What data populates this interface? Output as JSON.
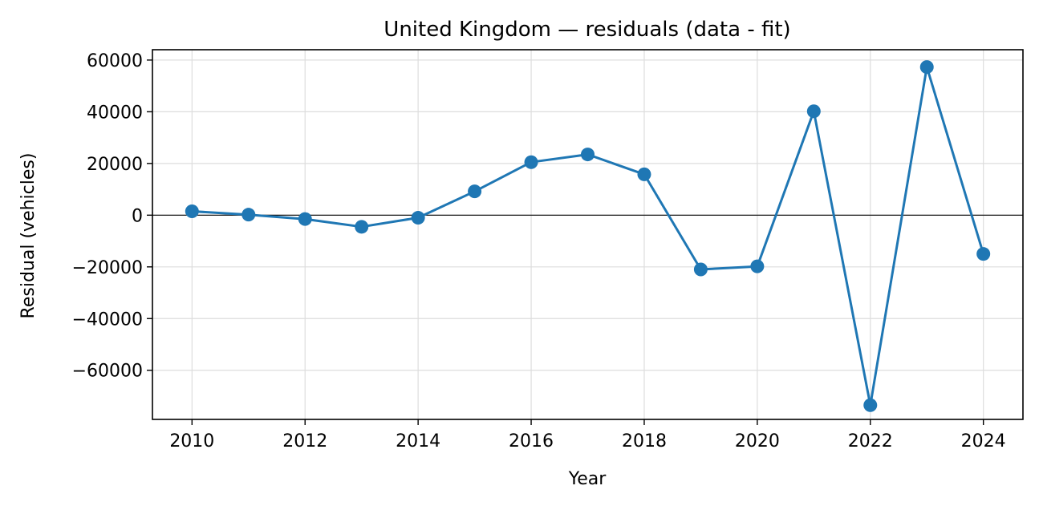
{
  "chart_data": {
    "type": "line",
    "title": "United Kingdom — residuals (data - fit)",
    "xlabel": "Year",
    "ylabel": "Residual (vehicles)",
    "x": [
      2010,
      2011,
      2012,
      2013,
      2014,
      2015,
      2016,
      2017,
      2018,
      2019,
      2020,
      2021,
      2022,
      2023,
      2024
    ],
    "series": [
      {
        "values": [
          1500,
          200,
          -1500,
          -4500,
          -1000,
          9200,
          20500,
          23500,
          15800,
          -21000,
          -19800,
          40200,
          -73500,
          57300,
          -15000
        ],
        "color": "#1f77b4"
      }
    ],
    "xlim": [
      2009.3,
      2024.7
    ],
    "ylim": [
      -79000,
      64000
    ],
    "xticks": [
      2010,
      2012,
      2014,
      2016,
      2018,
      2020,
      2022,
      2024
    ],
    "xtick_labels": [
      "2010",
      "2012",
      "2014",
      "2016",
      "2018",
      "2020",
      "2022",
      "2024"
    ],
    "yticks": [
      -60000,
      -40000,
      -20000,
      0,
      20000,
      40000,
      60000
    ],
    "ytick_labels": [
      "−60000",
      "−40000",
      "−20000",
      "0",
      "20000",
      "40000",
      "60000"
    ],
    "zero_line": true,
    "grid": true,
    "legend": "none"
  }
}
